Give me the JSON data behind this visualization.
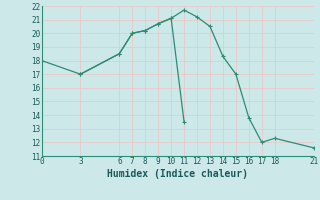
{
  "xlabel": "Humidex (Indice chaleur)",
  "line1_x": [
    0,
    3,
    6,
    7,
    8,
    9,
    10,
    11,
    12,
    13,
    14,
    15,
    16,
    17,
    18,
    21
  ],
  "line1_y": [
    18,
    17,
    18.5,
    20,
    20.2,
    20.7,
    21.1,
    21.7,
    21.2,
    20.5,
    18.3,
    17.0,
    13.8,
    12.0,
    12.3,
    11.6
  ],
  "line2_x": [
    3,
    6,
    7,
    8,
    9,
    10,
    11
  ],
  "line2_y": [
    17,
    18.5,
    20,
    20.2,
    20.7,
    21.1,
    13.5
  ],
  "color": "#2e8b74",
  "bg_color": "#cce8e8",
  "grid_color": "#e8c8c8",
  "xlim": [
    0,
    21
  ],
  "ylim": [
    11,
    22
  ],
  "xticks": [
    0,
    3,
    6,
    7,
    8,
    9,
    10,
    11,
    12,
    13,
    14,
    15,
    16,
    17,
    18,
    21
  ],
  "yticks": [
    11,
    12,
    13,
    14,
    15,
    16,
    17,
    18,
    19,
    20,
    21,
    22
  ],
  "tick_fontsize": 5.5,
  "xlabel_fontsize": 7.0,
  "linewidth": 0.9,
  "markersize": 3.0
}
